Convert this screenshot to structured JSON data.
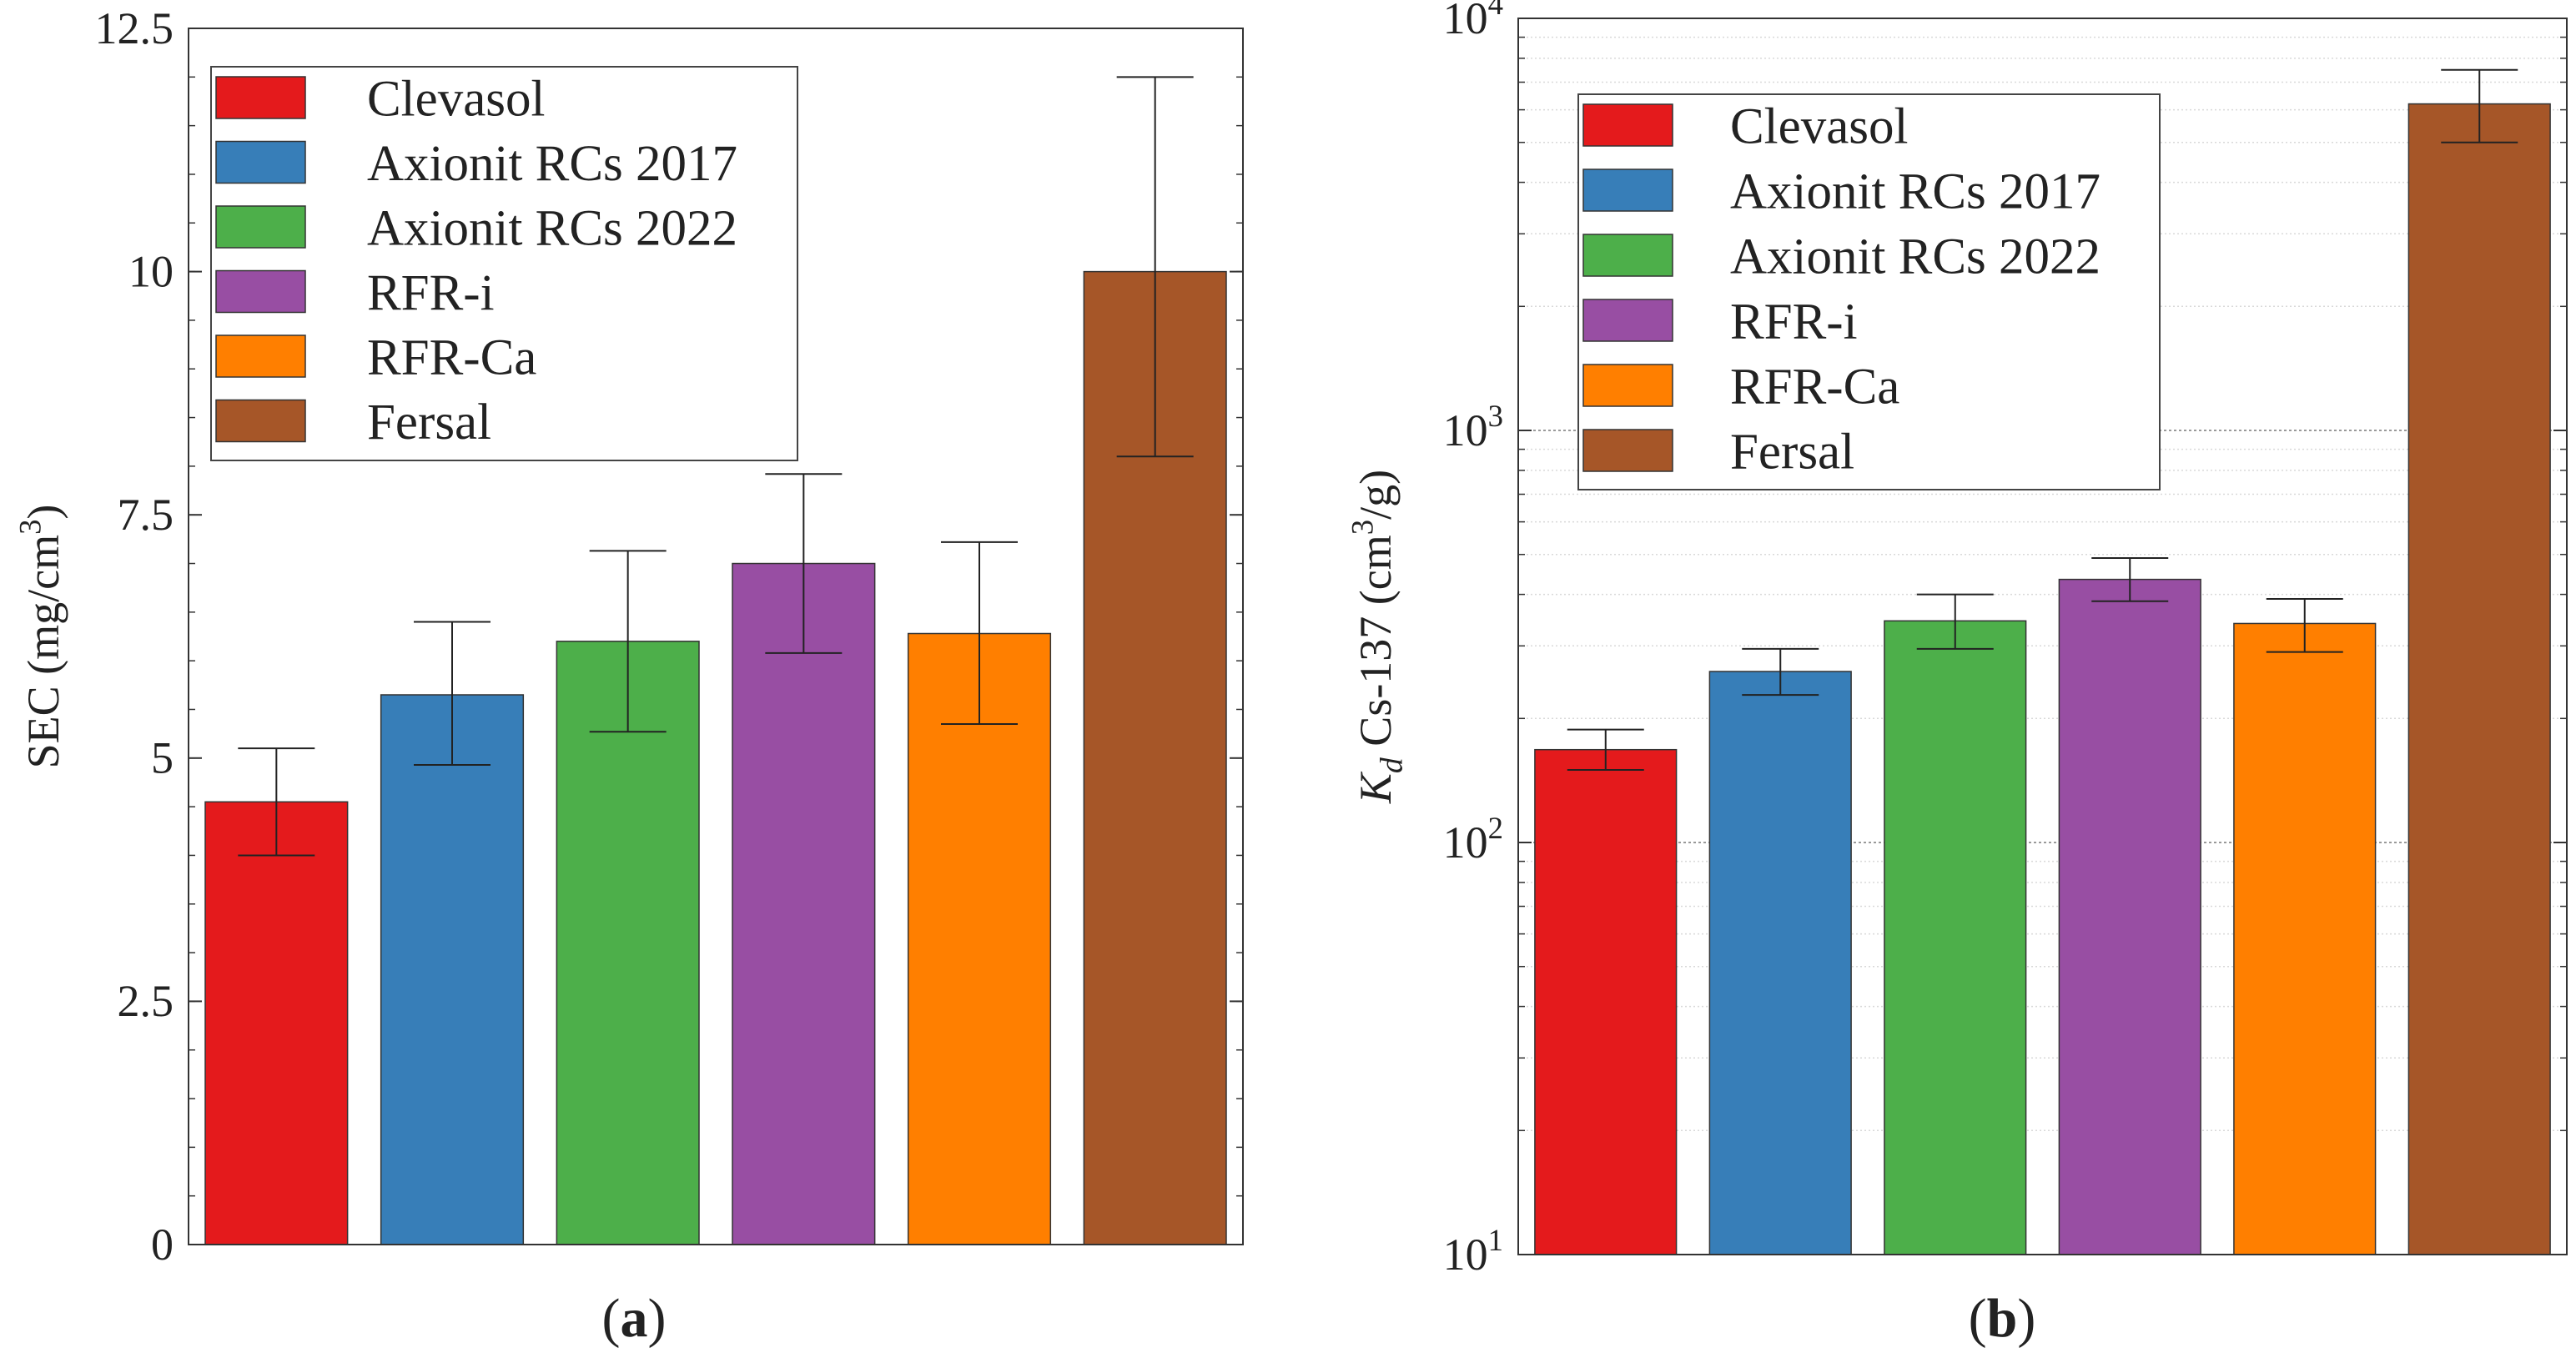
{
  "chart_data": [
    {
      "type": "bar",
      "panel_label": "a",
      "scale": "linear",
      "ylabel": "SEC (mg/cm",
      "ylabel_sup": "3",
      "ylabel_tail": ")",
      "ylim": [
        0,
        12.5
      ],
      "yticks": [
        0,
        2.5,
        5,
        7.5,
        10,
        12.5
      ],
      "ytick_labels": [
        "0",
        "2.5",
        "5",
        "7.5",
        "10",
        "12.5"
      ],
      "grid": false,
      "legend_position": "top-left",
      "categories": [
        "Clevasol",
        "Axionit RCs 2017",
        "Axionit RCs 2022",
        "RFR-i",
        "RFR-Ca",
        "Fersal"
      ],
      "values": [
        4.55,
        5.65,
        6.2,
        7.0,
        6.28,
        10.0
      ],
      "error_low": [
        4.0,
        4.93,
        5.27,
        6.08,
        5.35,
        8.1
      ],
      "error_high": [
        5.1,
        6.4,
        7.13,
        7.92,
        7.22,
        12.0
      ]
    },
    {
      "type": "bar",
      "panel_label": "b",
      "scale": "log",
      "ylabel_k": "K",
      "ylabel_sub": "d",
      "ylabel": "  Cs-137 (cm",
      "ylabel_sup": "3",
      "ylabel_tail": "/g)",
      "ylim": [
        10,
        10000
      ],
      "yticks": [
        10,
        100,
        1000,
        10000
      ],
      "ytick_bases": [
        "10",
        "10",
        "10",
        "10"
      ],
      "ytick_exps": [
        "1",
        "2",
        "3",
        "4"
      ],
      "grid": true,
      "legend_position": "top-left",
      "categories": [
        "Clevasol",
        "Axionit RCs 2017",
        "Axionit RCs 2022",
        "RFR-i",
        "RFR-Ca",
        "Fersal"
      ],
      "values": [
        168,
        260,
        345,
        435,
        340,
        6200
      ],
      "error_low": [
        150,
        228,
        295,
        385,
        290,
        5000
      ],
      "error_high": [
        188,
        295,
        400,
        490,
        390,
        7500
      ]
    }
  ],
  "series_colors": [
    "#e41a1c",
    "#377eb8",
    "#4daf4a",
    "#984ea3",
    "#ff7f00",
    "#a65628"
  ]
}
